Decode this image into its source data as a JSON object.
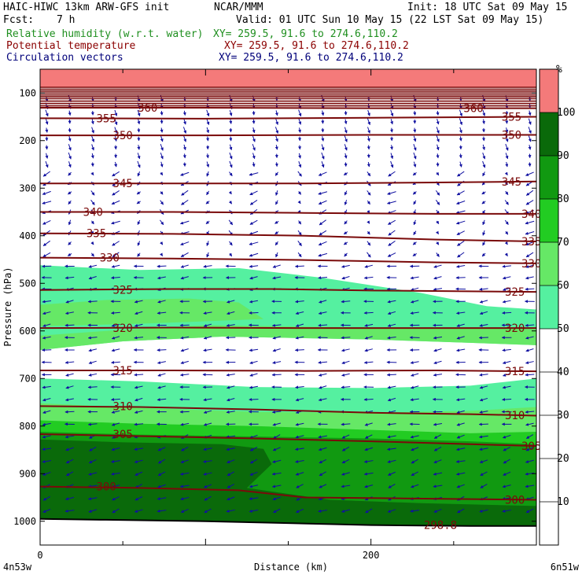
{
  "header": {
    "model": "HAIC-HIWC 13km ARW-GFS init",
    "org": "NCAR/MMM",
    "init": "Init: 18 UTC Sat 09 May 15",
    "fcst_label": "Fcst:",
    "fcst_value": "7 h",
    "valid": "Valid: 01 UTC Sun 10 May 15 (22 LST Sat 09 May 15)",
    "fields": [
      {
        "name": "Relative humidity (w.r.t. water)",
        "xy": "XY= 259.5, 91.6 to 274.6,110.2",
        "color": "#1f8f1f"
      },
      {
        "name": "Potential temperature",
        "xy": "XY= 259.5, 91.6 to 274.6,110.2",
        "color": "#8b0000"
      },
      {
        "name": "Circulation vectors",
        "xy": "XY= 259.5, 91.6 to 274.6,110.2",
        "color": "#00007a"
      }
    ]
  },
  "chart_data": {
    "type": "cross-section",
    "ylabel": "Pressure (hPa)",
    "xlabel": "Distance (km)",
    "x_left_label": "4n53w",
    "x_right_label": "6n51w",
    "xlim": [
      0,
      300
    ],
    "ylim": [
      1050,
      50
    ],
    "xticks": [
      0,
      200
    ],
    "yticks": [
      100,
      200,
      300,
      400,
      500,
      600,
      700,
      800,
      900,
      1000
    ],
    "colorbar": {
      "unit": "%",
      "ticks": [
        10,
        20,
        30,
        40,
        50,
        60,
        70,
        80,
        90,
        100
      ],
      "bins": [
        {
          "from": 50,
          "to": 60,
          "color": "#55f0a0"
        },
        {
          "from": 60,
          "to": 70,
          "color": "#66e866"
        },
        {
          "from": 70,
          "to": 80,
          "color": "#22cc22"
        },
        {
          "from": 80,
          "to": 90,
          "color": "#119911"
        },
        {
          "from": 90,
          "to": 100,
          "color": "#0a6a0a"
        },
        {
          "from": 100,
          "to": 110,
          "color": "#f47a7a"
        }
      ]
    },
    "rh_regions": [
      {
        "rh": 55,
        "top": [
          [
            0,
            462
          ],
          [
            60,
            472
          ],
          [
            120,
            468
          ],
          [
            170,
            488
          ],
          [
            230,
            520
          ],
          [
            270,
            548
          ],
          [
            300,
            555
          ]
        ],
        "bottom": [
          [
            0,
            1050
          ],
          [
            300,
            1050
          ]
        ]
      },
      {
        "rh": 40,
        "top": [
          [
            0,
            640
          ],
          [
            50,
            622
          ],
          [
            110,
            612
          ],
          [
            200,
            618
          ],
          [
            260,
            625
          ],
          [
            300,
            630
          ]
        ],
        "bottom": [
          [
            0,
            700
          ],
          [
            60,
            706
          ],
          [
            130,
            718
          ],
          [
            200,
            720
          ],
          [
            260,
            715
          ],
          [
            300,
            700
          ]
        ]
      },
      {
        "rh": 65,
        "top": [
          [
            0,
            610
          ],
          [
            40,
            600
          ],
          [
            100,
            588
          ],
          [
            140,
            590
          ],
          [
            220,
            594
          ],
          [
            300,
            596
          ]
        ],
        "bottom": [
          [
            0,
            640
          ],
          [
            50,
            622
          ],
          [
            110,
            612
          ],
          [
            200,
            618
          ],
          [
            260,
            625
          ],
          [
            300,
            630
          ]
        ]
      },
      {
        "rh": 65,
        "top": [
          [
            0,
            545
          ],
          [
            40,
            535
          ],
          [
            90,
            532
          ],
          [
            120,
            540
          ],
          [
            135,
            575
          ],
          [
            60,
            585
          ],
          [
            0,
            590
          ]
        ],
        "bottom": [
          [
            0,
            590
          ],
          [
            60,
            585
          ],
          [
            135,
            575
          ]
        ]
      },
      {
        "rh": 65,
        "top": [
          [
            0,
            752
          ],
          [
            60,
            762
          ],
          [
            130,
            770
          ],
          [
            200,
            772
          ],
          [
            260,
            768
          ],
          [
            300,
            760
          ]
        ],
        "bottom": [
          [
            0,
            1050
          ],
          [
            300,
            1050
          ]
        ]
      },
      {
        "rh": 75,
        "top": [
          [
            0,
            788
          ],
          [
            60,
            795
          ],
          [
            130,
            800
          ],
          [
            200,
            808
          ],
          [
            260,
            815
          ],
          [
            300,
            812
          ]
        ],
        "bottom": [
          [
            0,
            1050
          ],
          [
            300,
            1050
          ]
        ]
      },
      {
        "rh": 85,
        "top": [
          [
            0,
            812
          ],
          [
            60,
            818
          ],
          [
            130,
            822
          ],
          [
            200,
            826
          ],
          [
            260,
            832
          ],
          [
            300,
            838
          ]
        ],
        "bottom": [
          [
            0,
            1050
          ],
          [
            300,
            1050
          ]
        ]
      },
      {
        "rh": 95,
        "top": [
          [
            0,
            828
          ],
          [
            50,
            834
          ],
          [
            110,
            838
          ],
          [
            135,
            848
          ],
          [
            140,
            880
          ],
          [
            125,
            930
          ],
          [
            175,
            955
          ],
          [
            230,
            962
          ],
          [
            300,
            968
          ]
        ],
        "bottom": [
          [
            0,
            1050
          ],
          [
            300,
            1050
          ]
        ]
      },
      {
        "rh": 105,
        "top": [
          [
            0,
            48
          ],
          [
            300,
            48
          ]
        ],
        "bottom": [
          [
            0,
            88
          ],
          [
            300,
            88
          ]
        ]
      }
    ],
    "theta_contours": [
      {
        "level": 300,
        "p": [
          [
            0,
            927
          ],
          [
            60,
            930
          ],
          [
            120,
            935
          ],
          [
            160,
            950
          ],
          [
            220,
            952
          ],
          [
            300,
            955
          ]
        ]
      },
      {
        "level": 305,
        "p": [
          [
            0,
            817
          ],
          [
            60,
            821
          ],
          [
            130,
            826
          ],
          [
            200,
            832
          ],
          [
            260,
            838
          ],
          [
            300,
            842
          ]
        ]
      },
      {
        "level": 310,
        "p": [
          [
            0,
            758
          ],
          [
            60,
            760
          ],
          [
            130,
            765
          ],
          [
            200,
            772
          ],
          [
            260,
            775
          ],
          [
            300,
            778
          ]
        ]
      },
      {
        "level": 315,
        "p": [
          [
            0,
            683
          ],
          [
            80,
            683
          ],
          [
            160,
            684
          ],
          [
            240,
            683
          ],
          [
            300,
            685
          ]
        ]
      },
      {
        "level": 320,
        "p": [
          [
            0,
            594
          ],
          [
            80,
            593
          ],
          [
            160,
            594
          ],
          [
            240,
            594
          ],
          [
            300,
            594
          ]
        ]
      },
      {
        "level": 325,
        "p": [
          [
            0,
            514
          ],
          [
            80,
            512
          ],
          [
            140,
            512
          ],
          [
            200,
            515
          ],
          [
            300,
            518
          ]
        ]
      },
      {
        "level": 330,
        "p": [
          [
            0,
            446
          ],
          [
            80,
            448
          ],
          [
            160,
            451
          ],
          [
            240,
            456
          ],
          [
            300,
            458
          ]
        ]
      },
      {
        "level": 335,
        "p": [
          [
            0,
            395
          ],
          [
            80,
            396
          ],
          [
            160,
            400
          ],
          [
            240,
            408
          ],
          [
            300,
            412
          ]
        ]
      },
      {
        "level": 340,
        "p": [
          [
            0,
            350
          ],
          [
            80,
            350
          ],
          [
            160,
            352
          ],
          [
            240,
            354
          ],
          [
            300,
            354
          ]
        ]
      },
      {
        "level": 345,
        "p": [
          [
            0,
            290
          ],
          [
            80,
            290
          ],
          [
            160,
            290
          ],
          [
            240,
            288
          ],
          [
            300,
            286
          ]
        ]
      },
      {
        "level": 350,
        "p": [
          [
            0,
            189
          ],
          [
            100,
            189
          ],
          [
            200,
            188
          ],
          [
            300,
            188
          ]
        ]
      },
      {
        "level": 355,
        "p": [
          [
            0,
            153
          ],
          [
            100,
            154
          ],
          [
            200,
            152
          ],
          [
            300,
            150
          ]
        ]
      },
      {
        "level": 360,
        "p": [
          [
            0,
            131
          ],
          [
            100,
            131
          ],
          [
            200,
            132
          ],
          [
            300,
            132
          ]
        ]
      }
    ],
    "dense_theta_near_top": [
      88,
      92,
      96,
      100,
      104,
      108,
      112,
      117,
      122,
      127
    ],
    "theta_labels": [
      {
        "text": "360",
        "x": 65,
        "p": 131
      },
      {
        "text": "360",
        "x": 262,
        "p": 132
      },
      {
        "text": "355",
        "x": 40,
        "p": 153
      },
      {
        "text": "355",
        "x": 285,
        "p": 150
      },
      {
        "text": "350",
        "x": 50,
        "p": 189
      },
      {
        "text": "350",
        "x": 285,
        "p": 188
      },
      {
        "text": "345",
        "x": 50,
        "p": 290
      },
      {
        "text": "345",
        "x": 285,
        "p": 286
      },
      {
        "text": "340",
        "x": 32,
        "p": 350
      },
      {
        "text": "340",
        "x": 297,
        "p": 354
      },
      {
        "text": "335",
        "x": 34,
        "p": 395
      },
      {
        "text": "335",
        "x": 297,
        "p": 412
      },
      {
        "text": "330",
        "x": 42,
        "p": 446
      },
      {
        "text": "330",
        "x": 297,
        "p": 458
      },
      {
        "text": "325",
        "x": 50,
        "p": 514
      },
      {
        "text": "325",
        "x": 287,
        "p": 518
      },
      {
        "text": "320",
        "x": 50,
        "p": 594
      },
      {
        "text": "320",
        "x": 287,
        "p": 594
      },
      {
        "text": "315",
        "x": 50,
        "p": 683
      },
      {
        "text": "315",
        "x": 287,
        "p": 685
      },
      {
        "text": "310",
        "x": 50,
        "p": 758
      },
      {
        "text": "310",
        "x": 287,
        "p": 777
      },
      {
        "text": "305",
        "x": 50,
        "p": 817
      },
      {
        "text": "305",
        "x": 297,
        "p": 842
      },
      {
        "text": "300",
        "x": 40,
        "p": 927
      },
      {
        "text": "300",
        "x": 287,
        "p": 955
      },
      {
        "text": "298.8",
        "x": 242,
        "p": 1008
      }
    ],
    "terrain": [
      [
        0,
        995
      ],
      [
        40,
        997
      ],
      [
        100,
        1000
      ],
      [
        150,
        1004
      ],
      [
        200,
        1008
      ],
      [
        260,
        1010
      ],
      [
        300,
        1010
      ]
    ],
    "vector_columns": 22,
    "vector_rows_p": [
      112,
      127,
      142,
      160,
      178,
      196,
      214,
      232,
      250,
      270,
      290,
      310,
      330,
      350,
      372,
      394,
      416,
      440,
      464,
      488,
      512,
      538,
      562,
      588,
      614,
      640,
      666,
      692,
      718,
      744,
      770,
      796,
      822,
      848,
      874,
      900,
      926,
      952,
      978
    ],
    "vector_rule": [
      {
        "max_p": 260,
        "dir": "down",
        "u": 0.15,
        "v": 1.0
      },
      {
        "max_p": 450,
        "dir": "mixed",
        "u": -0.7,
        "v": 0.6
      },
      {
        "max_p": 800,
        "dir": "west",
        "u": -1.0,
        "v": 0.2
      },
      {
        "max_p": 1050,
        "dir": "sw",
        "u": -0.9,
        "v": 0.5
      }
    ]
  }
}
